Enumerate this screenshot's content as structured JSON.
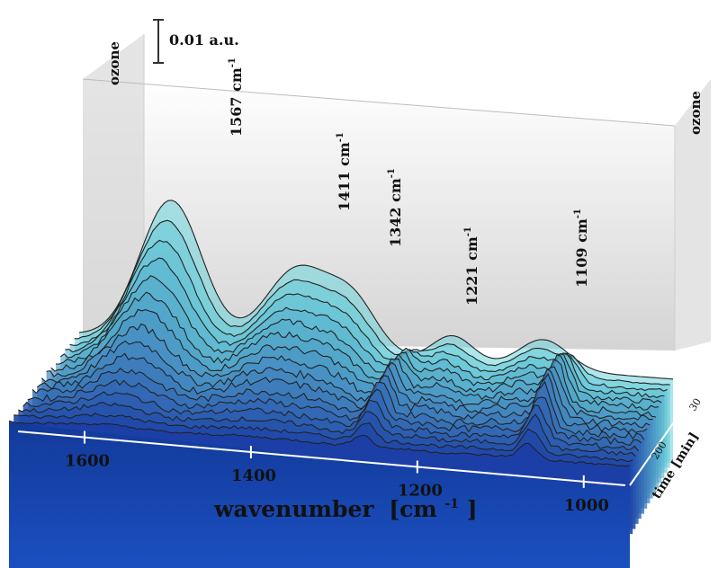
{
  "chart_data": {
    "type": "area",
    "scale_bar_label": "0.01 a.u.",
    "wall_label_left": "ozone",
    "wall_label_right": "ozone",
    "xlabel": "wavenumber",
    "xunit": "[cm",
    "xunit_sup": "-1",
    "xunit_close": "]",
    "x_range": [
      1680,
      950
    ],
    "x_ticks": [
      {
        "value": 1600,
        "label": "1600"
      },
      {
        "value": 1400,
        "label": "1400"
      },
      {
        "value": 1200,
        "label": "1200"
      },
      {
        "value": 1000,
        "label": "1000"
      }
    ],
    "time_axis": {
      "label": "time [min]",
      "ticks": [
        {
          "value": 30,
          "label": "30"
        },
        {
          "value": 200,
          "label": "200"
        }
      ]
    },
    "peaks": [
      {
        "x": 1567,
        "label": "1567 cm",
        "sup": "-1"
      },
      {
        "x": 1411,
        "label": "1411 cm",
        "sup": "-1"
      },
      {
        "x": 1342,
        "label": "1342 cm",
        "sup": "-1"
      },
      {
        "x": 1221,
        "label": "1221 cm",
        "sup": "-1"
      },
      {
        "x": 1109,
        "label": "1109 cm",
        "sup": "-1"
      }
    ],
    "spectra_count": 16,
    "colors": {
      "front": "#1c3fa6",
      "back": "#6ad3da",
      "line": "#222222",
      "box": "#c8c8c8"
    }
  }
}
